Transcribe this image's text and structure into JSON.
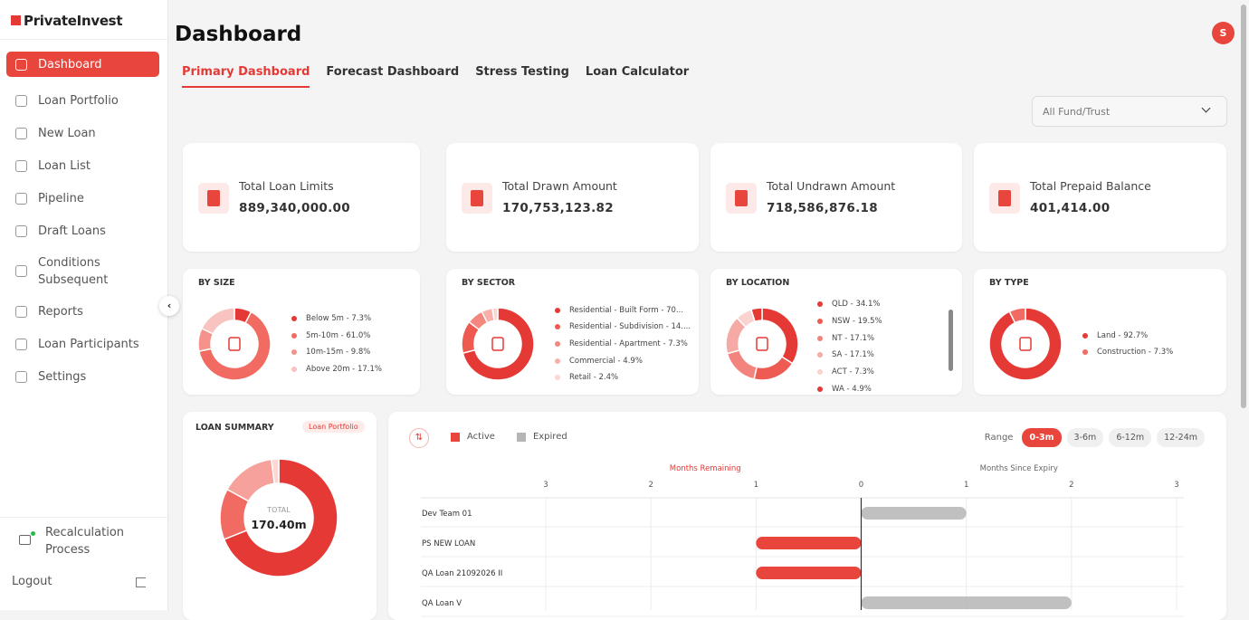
{
  "brand": "PrivateInvest",
  "nav": [
    "Dashboard",
    "Loan Portfolio",
    "New Loan",
    "Loan List",
    "Pipeline",
    "Draft Loans",
    "Conditions Subsequent",
    "Reports",
    "Loan Participants",
    "Settings"
  ],
  "sidebar_footer": {
    "recalculation": "Recalculation Process",
    "logout": "Logout"
  },
  "header": {
    "title": "Dashboard",
    "avatar": "S"
  },
  "tabs": [
    "Primary Dashboard",
    "Forecast Dashboard",
    "Stress Testing",
    "Loan Calculator"
  ],
  "filter": "All Fund/Trust",
  "kpis": [
    {
      "label": "Total Loan Limits",
      "value": "889,340,000.00"
    },
    {
      "label": "Total Drawn Amount",
      "value": "170,753,123.82"
    },
    {
      "label": "Total Undrawn Amount",
      "value": "718,586,876.18"
    },
    {
      "label": "Total Prepaid Balance",
      "value": "401,414.00"
    }
  ],
  "breakdowns": [
    {
      "title": "BY SIZE",
      "items": [
        {
          "label": "Below 5m - 7.3%",
          "value": 7.3,
          "color": "#e53935"
        },
        {
          "label": "5m-10m - 61.0%",
          "value": 61.0,
          "color": "#f26b63"
        },
        {
          "label": "10m-15m - 9.8%",
          "value": 9.8,
          "color": "#f4928b"
        },
        {
          "label": "Above 20m - 17.1%",
          "value": 17.1,
          "color": "#f9c3bf"
        }
      ]
    },
    {
      "title": "BY SECTOR",
      "items": [
        {
          "label": "Residential - Built Form - 70...",
          "value": 70.9,
          "color": "#e53935"
        },
        {
          "label": "Residential - Subdivision - 14....",
          "value": 14.5,
          "color": "#ef5a50"
        },
        {
          "label": "Residential - Apartment - 7.3%",
          "value": 7.3,
          "color": "#f3867f"
        },
        {
          "label": "Commercial - 4.9%",
          "value": 4.9,
          "color": "#f7b0aa"
        },
        {
          "label": "Retail - 2.4%",
          "value": 2.4,
          "color": "#fbd6d3"
        }
      ]
    },
    {
      "title": "BY LOCATION",
      "items": [
        {
          "label": "QLD - 34.1%",
          "value": 34.1,
          "color": "#e53935"
        },
        {
          "label": "NSW - 19.5%",
          "value": 19.5,
          "color": "#ee5b52"
        },
        {
          "label": "NT - 17.1%",
          "value": 17.1,
          "color": "#f2847d"
        },
        {
          "label": "SA - 17.1%",
          "value": 17.1,
          "color": "#f6aaa5"
        },
        {
          "label": "ACT - 7.3%",
          "value": 7.3,
          "color": "#fad2cf"
        },
        {
          "label": "WA - 4.9%",
          "value": 4.9,
          "color": "#e53935"
        }
      ]
    },
    {
      "title": "BY TYPE",
      "items": [
        {
          "label": "Land - 92.7%",
          "value": 92.7,
          "color": "#e53935"
        },
        {
          "label": "Construction - 7.3%",
          "value": 7.3,
          "color": "#f26b63"
        }
      ]
    }
  ],
  "loan_summary": {
    "title": "LOAN SUMMARY",
    "link": "Loan Portfolio",
    "total_label": "TOTAL",
    "total": "170.40m",
    "segments": [
      {
        "value": 69,
        "color": "#e53935"
      },
      {
        "value": 14,
        "color": "#f26b63"
      },
      {
        "value": 15,
        "color": "#f6a19b"
      },
      {
        "value": 2,
        "color": "#fbd6d3"
      }
    ]
  },
  "timeline": {
    "type": "bar",
    "legend": [
      {
        "name": "Active",
        "color": "#e8453c"
      },
      {
        "name": "Expired",
        "color": "#b5b5b5"
      }
    ],
    "range_label": "Range",
    "ranges": [
      "0-3m",
      "3-6m",
      "6-12m",
      "12-24m"
    ],
    "left_title": "Months Remaining",
    "right_title": "Months Since Expiry",
    "xlim": [
      -3,
      3
    ],
    "xticks": [
      {
        "value": -3,
        "label": "3"
      },
      {
        "value": -2,
        "label": "2"
      },
      {
        "value": -1,
        "label": "1"
      },
      0,
      1,
      2,
      3
    ],
    "rows": [
      {
        "name": "Dev Team 01",
        "status": "Expired",
        "months": 1
      },
      {
        "name": "PS NEW LOAN",
        "status": "Active",
        "months": 1
      },
      {
        "name": "QA Loan 21092026 II",
        "status": "Active",
        "months": 1
      },
      {
        "name": "QA Loan V",
        "status": "Expired",
        "months": 2
      }
    ]
  }
}
